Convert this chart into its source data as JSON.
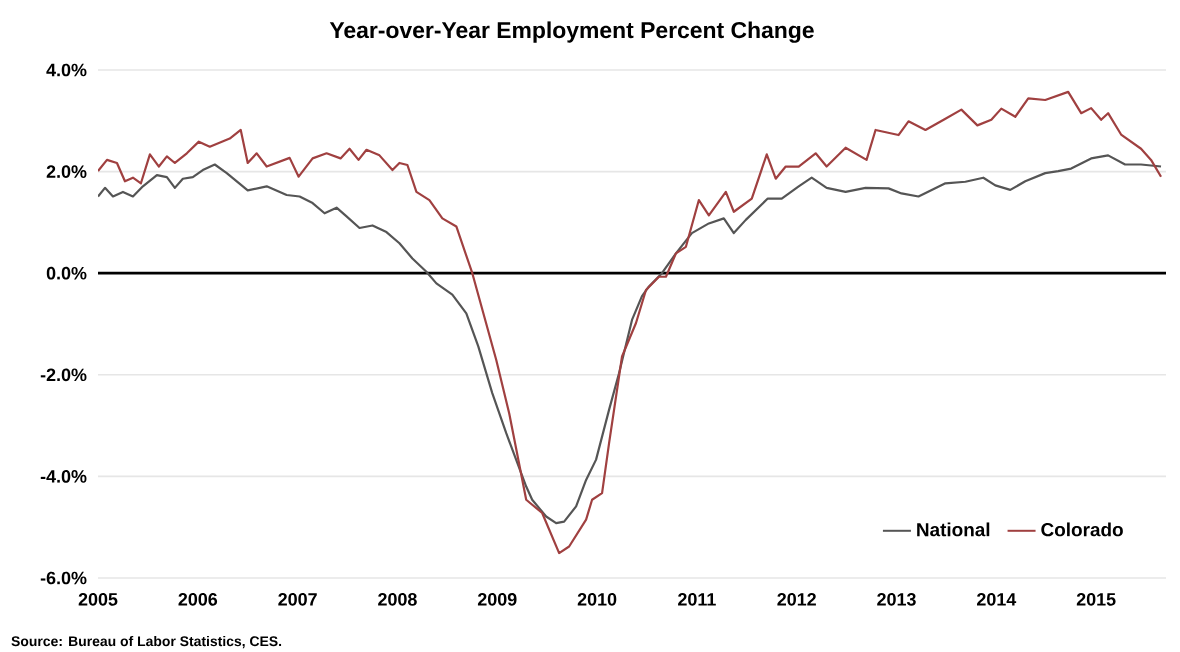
{
  "chart_data": {
    "type": "line",
    "title": "Year-over-Year Employment Percent Change",
    "annotations": [
      "Source: Bureau of Labor Statistics, CES."
    ],
    "xlim": [
      2005,
      2015.7
    ],
    "xticks": [
      2005,
      2006,
      2007,
      2008,
      2009,
      2010,
      2011,
      2012,
      2013,
      2014,
      2015
    ],
    "ylim": [
      -6,
      4
    ],
    "yticks": [
      {
        "value": -6,
        "label": "-6.0%"
      },
      {
        "value": -4,
        "label": "-4.0%"
      },
      {
        "value": -2,
        "label": "-2.0%"
      },
      {
        "value": 0,
        "label": "0.0%"
      },
      {
        "value": 2,
        "label": "2.0%"
      },
      {
        "value": 4,
        "label": "4.0%"
      }
    ],
    "grid": "y",
    "legend": "bottom right",
    "ref_lines": [
      {
        "axis": "y",
        "value": 0,
        "color": "#000000"
      }
    ],
    "series": [
      {
        "name": "National",
        "color": "#555555",
        "x": [
          2005.0,
          2005.07,
          2005.15,
          2005.25,
          2005.35,
          2005.45,
          2005.59,
          2005.69,
          2005.77,
          2005.85,
          2005.95,
          2006.05,
          2006.17,
          2006.29,
          2006.5,
          2006.69,
          2006.89,
          2007.02,
          2007.15,
          2007.27,
          2007.39,
          2007.49,
          2007.62,
          2007.75,
          2007.89,
          2008.02,
          2008.15,
          2008.29,
          2008.39,
          2008.55,
          2008.69,
          2008.81,
          2008.95,
          2009.09,
          2009.29,
          2009.35,
          2009.49,
          2009.59,
          2009.67,
          2009.79,
          2009.89,
          2009.99,
          2010.12,
          2010.22,
          2010.35,
          2010.45,
          2010.52,
          2010.65,
          2010.79,
          2010.95,
          2011.12,
          2011.27,
          2011.37,
          2011.49,
          2011.71,
          2011.85,
          2012.02,
          2012.15,
          2012.3,
          2012.49,
          2012.69,
          2012.92,
          2013.05,
          2013.22,
          2013.49,
          2013.69,
          2013.87,
          2013.99,
          2014.14,
          2014.29,
          2014.49,
          2014.62,
          2014.75,
          2014.95,
          2015.12,
          2015.29,
          2015.45,
          2015.65
        ],
        "values": [
          1.51,
          1.68,
          1.51,
          1.6,
          1.51,
          1.71,
          1.93,
          1.89,
          1.68,
          1.86,
          1.89,
          2.03,
          2.14,
          1.97,
          1.63,
          1.71,
          1.54,
          1.51,
          1.38,
          1.18,
          1.29,
          1.12,
          0.89,
          0.94,
          0.81,
          0.59,
          0.29,
          0.03,
          -0.2,
          -0.42,
          -0.79,
          -1.44,
          -2.36,
          -3.15,
          -4.2,
          -4.46,
          -4.79,
          -4.92,
          -4.89,
          -4.59,
          -4.07,
          -3.67,
          -2.69,
          -1.97,
          -0.92,
          -0.45,
          -0.26,
          0.0,
          0.39,
          0.79,
          0.98,
          1.08,
          0.79,
          1.05,
          1.47,
          1.47,
          1.71,
          1.88,
          1.68,
          1.6,
          1.68,
          1.67,
          1.57,
          1.51,
          1.77,
          1.8,
          1.88,
          1.73,
          1.64,
          1.81,
          1.97,
          2.01,
          2.06,
          2.26,
          2.32,
          2.14,
          2.14,
          2.1
        ]
      },
      {
        "name": "Colorado",
        "color": "#a04040",
        "x": [
          2005.0,
          2005.09,
          2005.19,
          2005.27,
          2005.35,
          2005.43,
          2005.52,
          2005.61,
          2005.69,
          2005.77,
          2005.89,
          2006.01,
          2006.12,
          2006.32,
          2006.43,
          2006.5,
          2006.59,
          2006.69,
          2006.92,
          2007.01,
          2007.15,
          2007.29,
          2007.43,
          2007.52,
          2007.61,
          2007.69,
          2007.82,
          2007.95,
          2008.02,
          2008.1,
          2008.19,
          2008.32,
          2008.45,
          2008.59,
          2008.75,
          2008.99,
          2009.12,
          2009.29,
          2009.45,
          2009.62,
          2009.72,
          2009.89,
          2009.95,
          2010.05,
          2010.12,
          2010.25,
          2010.39,
          2010.49,
          2010.62,
          2010.69,
          2010.79,
          2010.89,
          2011.02,
          2011.12,
          2011.29,
          2011.37,
          2011.55,
          2011.7,
          2011.79,
          2011.89,
          2012.02,
          2012.19,
          2012.3,
          2012.49,
          2012.7,
          2012.79,
          2013.02,
          2013.12,
          2013.29,
          2013.49,
          2013.65,
          2013.81,
          2013.95,
          2014.05,
          2014.19,
          2014.32,
          2014.49,
          2014.72,
          2014.85,
          2014.95,
          2015.05,
          2015.12,
          2015.25,
          2015.45,
          2015.55,
          2015.65
        ],
        "values": [
          2.01,
          2.23,
          2.17,
          1.81,
          1.88,
          1.77,
          2.34,
          2.1,
          2.3,
          2.17,
          2.36,
          2.59,
          2.49,
          2.65,
          2.82,
          2.17,
          2.36,
          2.1,
          2.27,
          1.9,
          2.26,
          2.36,
          2.26,
          2.45,
          2.23,
          2.43,
          2.32,
          2.03,
          2.17,
          2.13,
          1.6,
          1.44,
          1.08,
          0.92,
          0.0,
          -1.71,
          -2.76,
          -4.46,
          -4.72,
          -5.51,
          -5.38,
          -4.85,
          -4.46,
          -4.33,
          -3.35,
          -1.64,
          -0.98,
          -0.33,
          -0.07,
          -0.07,
          0.39,
          0.52,
          1.44,
          1.14,
          1.6,
          1.21,
          1.47,
          2.34,
          1.86,
          2.1,
          2.1,
          2.36,
          2.1,
          2.47,
          2.23,
          2.82,
          2.72,
          2.99,
          2.82,
          3.04,
          3.22,
          2.91,
          3.02,
          3.24,
          3.08,
          3.44,
          3.41,
          3.57,
          3.15,
          3.25,
          3.02,
          3.15,
          2.73,
          2.45,
          2.23,
          1.9
        ]
      }
    ]
  }
}
